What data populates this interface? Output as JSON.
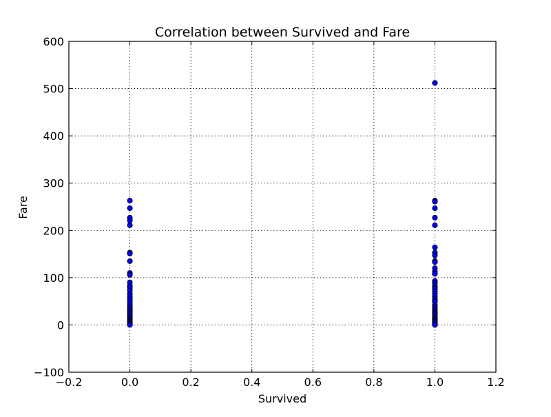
{
  "chart_data": {
    "type": "scatter",
    "title": "Correlation between Survived and Fare",
    "xlabel": "Survived",
    "ylabel": "Fare",
    "xlim": [
      -0.2,
      1.2
    ],
    "ylim": [
      -100,
      600
    ],
    "x_ticks": [
      -0.2,
      0.0,
      0.2,
      0.4,
      0.6,
      0.8,
      1.0,
      1.2
    ],
    "x_tick_labels": [
      "−0.2",
      "0.0",
      "0.2",
      "0.4",
      "0.6",
      "0.8",
      "1.0",
      "1.2"
    ],
    "y_ticks": [
      -100,
      0,
      100,
      200,
      300,
      400,
      500,
      600
    ],
    "y_tick_labels": [
      "−100",
      "0",
      "100",
      "200",
      "300",
      "400",
      "500",
      "600"
    ],
    "grid": true,
    "legend": "none",
    "marker_color": "#0000ff",
    "marker_edge_color": "#000000",
    "series": [
      {
        "points": [
          {
            "x": 0,
            "y": 263
          },
          {
            "x": 0,
            "y": 247
          },
          {
            "x": 0,
            "y": 227
          },
          {
            "x": 0,
            "y": 221
          },
          {
            "x": 0,
            "y": 211
          },
          {
            "x": 0,
            "y": 153
          },
          {
            "x": 0,
            "y": 151
          },
          {
            "x": 0,
            "y": 135
          },
          {
            "x": 0,
            "y": 110
          },
          {
            "x": 0,
            "y": 106
          },
          {
            "x": 0,
            "y": 90
          },
          {
            "x": 0,
            "y": 83
          },
          {
            "x": 0,
            "y": 79
          },
          {
            "x": 0,
            "y": 73
          },
          {
            "x": 0,
            "y": 66
          },
          {
            "x": 0,
            "y": 61
          },
          {
            "x": 0,
            "y": 56
          },
          {
            "x": 0,
            "y": 52
          },
          {
            "x": 0,
            "y": 47
          },
          {
            "x": 0,
            "y": 42
          },
          {
            "x": 0,
            "y": 38
          },
          {
            "x": 0,
            "y": 34
          },
          {
            "x": 0,
            "y": 30
          },
          {
            "x": 0,
            "y": 27
          },
          {
            "x": 0,
            "y": 24
          },
          {
            "x": 0,
            "y": 21
          },
          {
            "x": 0,
            "y": 18
          },
          {
            "x": 0,
            "y": 15
          },
          {
            "x": 0,
            "y": 13
          },
          {
            "x": 0,
            "y": 10
          },
          {
            "x": 0,
            "y": 8
          },
          {
            "x": 0,
            "y": 6
          },
          {
            "x": 0,
            "y": 4
          },
          {
            "x": 0,
            "y": 2
          },
          {
            "x": 0,
            "y": 0
          },
          {
            "x": 1,
            "y": 512
          },
          {
            "x": 1,
            "y": 263
          },
          {
            "x": 1,
            "y": 261
          },
          {
            "x": 1,
            "y": 247
          },
          {
            "x": 1,
            "y": 227
          },
          {
            "x": 1,
            "y": 211
          },
          {
            "x": 1,
            "y": 164
          },
          {
            "x": 1,
            "y": 153
          },
          {
            "x": 1,
            "y": 147
          },
          {
            "x": 1,
            "y": 135
          },
          {
            "x": 1,
            "y": 133
          },
          {
            "x": 1,
            "y": 120
          },
          {
            "x": 1,
            "y": 113
          },
          {
            "x": 1,
            "y": 108
          },
          {
            "x": 1,
            "y": 93
          },
          {
            "x": 1,
            "y": 89
          },
          {
            "x": 1,
            "y": 83
          },
          {
            "x": 1,
            "y": 79
          },
          {
            "x": 1,
            "y": 76
          },
          {
            "x": 1,
            "y": 71
          },
          {
            "x": 1,
            "y": 66
          },
          {
            "x": 1,
            "y": 61
          },
          {
            "x": 1,
            "y": 56
          },
          {
            "x": 1,
            "y": 52
          },
          {
            "x": 1,
            "y": 49
          },
          {
            "x": 1,
            "y": 42
          },
          {
            "x": 1,
            "y": 39
          },
          {
            "x": 1,
            "y": 35
          },
          {
            "x": 1,
            "y": 31
          },
          {
            "x": 1,
            "y": 27
          },
          {
            "x": 1,
            "y": 26
          },
          {
            "x": 1,
            "y": 23
          },
          {
            "x": 1,
            "y": 20
          },
          {
            "x": 1,
            "y": 16
          },
          {
            "x": 1,
            "y": 13
          },
          {
            "x": 1,
            "y": 11
          },
          {
            "x": 1,
            "y": 8
          },
          {
            "x": 1,
            "y": 6
          },
          {
            "x": 1,
            "y": 3
          },
          {
            "x": 1,
            "y": 0
          }
        ]
      }
    ]
  }
}
